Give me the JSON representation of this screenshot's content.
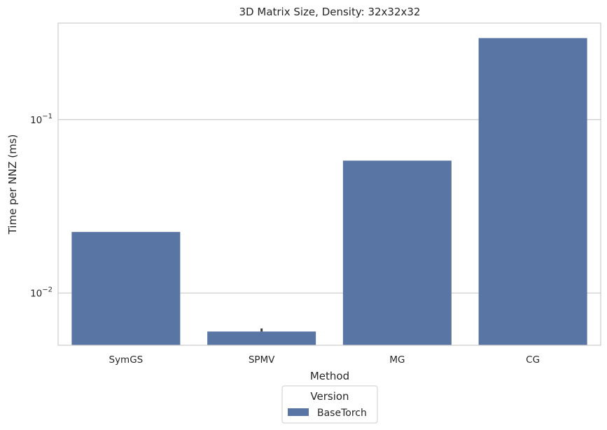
{
  "chart_data": {
    "type": "bar",
    "title": "3D Matrix Size, Density: 32x32x32",
    "xlabel": "Method",
    "ylabel": "Time per NNZ (ms)",
    "yscale": "log",
    "ylim": [
      0.005,
      0.36
    ],
    "yticks": [
      {
        "value": 0.1,
        "base": "10",
        "exp": "−1"
      },
      {
        "value": 0.01,
        "base": "10",
        "exp": "−2"
      }
    ],
    "categories": [
      "SymGS",
      "SPMV",
      "MG",
      "CG"
    ],
    "grid": true,
    "legend_placement": "bottom-center-outside",
    "legend_title": "Version",
    "series": [
      {
        "name": "BaseTorch",
        "color": "#5975a4",
        "values": [
          0.0225,
          0.006,
          0.058,
          0.295
        ],
        "error_high": [
          null,
          0.00625,
          null,
          null
        ]
      }
    ]
  }
}
